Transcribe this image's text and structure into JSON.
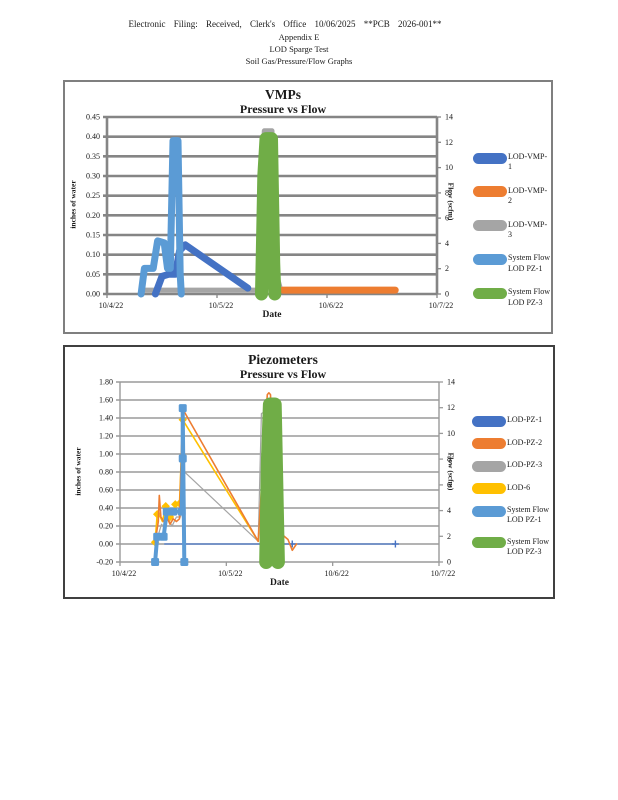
{
  "header": {
    "line1": "Electronic Filing: Received, Clerk's Office 10/06/2025 **PCB 2026-001**",
    "line2": "Appendix E",
    "line3": "LOD Sparge Test",
    "line4": "Soil Gas/Pressure/Flow Graphs"
  },
  "chart_data": [
    {
      "type": "line",
      "title": "VMPs",
      "subtitle": "Pressure vs Flow",
      "xlabel": "Date",
      "ylabel_left": "inches of water",
      "ylabel_right": "Flow (scfm)",
      "x_range": [
        0,
        3
      ],
      "x_ticks": [
        {
          "label": "10/4/22",
          "x": 0
        },
        {
          "label": "10/5/22",
          "x": 1
        },
        {
          "label": "10/6/22",
          "x": 2
        },
        {
          "label": "10/7/22",
          "x": 3
        }
      ],
      "ylim_left": [
        0,
        0.45
      ],
      "yticks_left": {
        "values": [
          0.0,
          0.05,
          0.1,
          0.15,
          0.2,
          0.25,
          0.3,
          0.35,
          0.4,
          0.45
        ],
        "labels": [
          "0.00",
          "0.05",
          "0.10",
          "0.15",
          "0.20",
          "0.25",
          "0.30",
          "0.35",
          "0.40",
          "0.45"
        ]
      },
      "ylim_right": [
        0,
        14
      ],
      "yticks_right": [
        "0",
        "2",
        "4",
        "6",
        "8",
        "10",
        "12",
        "14"
      ],
      "grid_color": "#858585",
      "grid_width": 2.6,
      "legend_position": "right",
      "series": [
        {
          "name": "LOD-VMP-3",
          "color": "#A5A5A5",
          "width": 5,
          "points": [
            [
              0.32,
              0.01
            ],
            [
              1.38,
              0.01
            ],
            [
              1.41,
              0.3
            ],
            [
              1.43,
              0.415
            ],
            [
              1.5,
              0.415
            ],
            [
              1.54,
              0.05
            ],
            [
              1.58,
              0.01
            ],
            [
              1.62,
              0.01
            ]
          ]
        },
        {
          "name": "LOD-VMP-1",
          "color": "#4472C4",
          "width": 7,
          "points": [
            [
              0.44,
              0.0
            ],
            [
              0.5,
              0.045
            ],
            [
              0.56,
              0.05
            ],
            [
              0.62,
              0.05
            ],
            [
              0.66,
              0.11
            ],
            [
              0.71,
              0.125
            ],
            [
              1.28,
              0.015
            ]
          ]
        },
        {
          "name": "LOD-VMP-2",
          "color": "#ED7D31",
          "width": 7,
          "points": [
            [
              1.6,
              0.01
            ],
            [
              2.62,
              0.01
            ]
          ]
        },
        {
          "name": "System Flow LOD PZ-1",
          "color": "#5B9BD5",
          "width": 7,
          "points": [
            [
              0.31,
              0.0
            ],
            [
              0.34,
              0.065
            ],
            [
              0.42,
              0.065
            ],
            [
              0.46,
              0.135
            ],
            [
              0.52,
              0.13
            ],
            [
              0.55,
              0.065
            ],
            [
              0.575,
              0.065
            ],
            [
              0.6,
              0.39
            ],
            [
              0.645,
              0.39
            ],
            [
              0.665,
              0.05
            ],
            [
              0.675,
              0.0
            ]
          ]
        },
        {
          "name": "System Flow LOD PZ-3",
          "color": "#70AD47",
          "width": 13,
          "points": [
            [
              1.405,
              0.0
            ],
            [
              1.425,
              0.3
            ],
            [
              1.445,
              0.395
            ],
            [
              1.495,
              0.395
            ],
            [
              1.515,
              0.08
            ],
            [
              1.525,
              0.0
            ]
          ]
        }
      ],
      "legend": [
        {
          "label": "LOD-VMP-1",
          "color": "#4472C4"
        },
        {
          "label": "LOD-VMP-2",
          "color": "#ED7D31"
        },
        {
          "label": "LOD-VMP-3",
          "color": "#A5A5A5"
        },
        {
          "label": "System Flow\nLOD PZ-1",
          "color": "#5B9BD5"
        },
        {
          "label": "System Flow\nLOD PZ-3",
          "color": "#70AD47"
        }
      ]
    },
    {
      "type": "line",
      "title": "Piezometers",
      "subtitle": "Pressure vs Flow",
      "xlabel": "Date",
      "ylabel_left": "inches of water",
      "ylabel_right": "Flow (scfm)",
      "x_range": [
        0,
        3
      ],
      "x_ticks": [
        {
          "label": "10/4/22",
          "x": 0
        },
        {
          "label": "10/5/22",
          "x": 1
        },
        {
          "label": "10/6/22",
          "x": 2
        },
        {
          "label": "10/7/22",
          "x": 3
        }
      ],
      "ylim_left": [
        -0.2,
        1.8
      ],
      "yticks_left": {
        "values": [
          -0.2,
          0.0,
          0.2,
          0.4,
          0.6,
          0.8,
          1.0,
          1.2,
          1.4,
          1.6,
          1.8
        ],
        "labels": [
          "-0.20",
          "0.00",
          "0.20",
          "0.40",
          "0.60",
          "0.80",
          "1.00",
          "1.20",
          "1.40",
          "1.60",
          "1.80"
        ]
      },
      "ylim_right": [
        0,
        14
      ],
      "yticks_right": [
        "0",
        "2",
        "4",
        "6",
        "8",
        "10",
        "12",
        "14"
      ],
      "grid_color": "#9a9a9a",
      "grid_width": 1.4,
      "legend_position": "right",
      "series": [
        {
          "name": "LOD-PZ-1",
          "color": "#4472C4",
          "width": 1.3,
          "points": [
            [
              0.42,
              0.0
            ],
            [
              2.59,
              0.0
            ]
          ],
          "marker": {
            "shape": "plus",
            "size": 7,
            "points": [
              [
                1.62,
                0.0
              ],
              [
                2.59,
                0.0
              ]
            ]
          }
        },
        {
          "name": "LOD-PZ-3",
          "color": "#A5A5A5",
          "width": 1.2,
          "points": [
            [
              0.36,
              0.1
            ],
            [
              0.39,
              0.22
            ],
            [
              0.42,
              0.18
            ],
            [
              0.45,
              0.28
            ],
            [
              0.49,
              0.2
            ],
            [
              0.53,
              0.3
            ],
            [
              0.57,
              0.3
            ],
            [
              0.59,
              0.82
            ],
            [
              1.3,
              0.03
            ],
            [
              1.33,
              1.45
            ],
            [
              1.41,
              1.5
            ],
            [
              1.46,
              0.0
            ]
          ]
        },
        {
          "name": "LOD-6",
          "color": "#FFC000",
          "width": 1.6,
          "points": [
            [
              0.33,
              0.02
            ],
            [
              0.35,
              0.33
            ],
            [
              0.38,
              0.3
            ],
            [
              0.4,
              0.25
            ],
            [
              0.43,
              0.42
            ],
            [
              0.46,
              0.3
            ],
            [
              0.49,
              0.3
            ],
            [
              0.52,
              0.44
            ],
            [
              0.56,
              0.45
            ],
            [
              0.59,
              1.38
            ],
            [
              1.3,
              0.03
            ]
          ],
          "marker": {
            "shape": "diamond",
            "size": 6,
            "points": [
              [
                0.33,
                0.02
              ],
              [
                0.35,
                0.33
              ],
              [
                0.43,
                0.42
              ],
              [
                0.47,
                0.3
              ],
              [
                0.52,
                0.44
              ],
              [
                0.56,
                0.45
              ],
              [
                0.59,
                1.38
              ]
            ]
          }
        },
        {
          "name": "LOD-PZ-2",
          "color": "#ED7D31",
          "width": 1.6,
          "points": [
            [
              0.33,
              0.02
            ],
            [
              0.36,
              0.25
            ],
            [
              0.37,
              0.54
            ],
            [
              0.385,
              0.3
            ],
            [
              0.41,
              0.25
            ],
            [
              0.44,
              0.3
            ],
            [
              0.47,
              0.22
            ],
            [
              0.5,
              0.28
            ],
            [
              0.53,
              0.25
            ],
            [
              0.56,
              0.28
            ],
            [
              0.59,
              1.5
            ],
            [
              1.3,
              0.03
            ],
            [
              1.385,
              1.66
            ],
            [
              1.4,
              1.68
            ],
            [
              1.415,
              1.66
            ],
            [
              1.46,
              0.05
            ],
            [
              1.49,
              -0.05
            ],
            [
              1.53,
              0.1
            ],
            [
              1.58,
              0.05
            ],
            [
              1.62,
              -0.07
            ],
            [
              1.66,
              0.0
            ]
          ]
        },
        {
          "name": "System Flow LOD PZ-1",
          "color": "#5B9BD5",
          "width": 4,
          "points": [
            [
              0.33,
              -0.2
            ],
            [
              0.35,
              0.08
            ],
            [
              0.41,
              0.08
            ],
            [
              0.44,
              0.36
            ],
            [
              0.58,
              0.36
            ],
            [
              0.59,
              0.95
            ],
            [
              0.59,
              1.51
            ],
            [
              0.605,
              -0.2
            ]
          ],
          "marker": {
            "shape": "square",
            "size": 8,
            "points": [
              [
                0.33,
                -0.2
              ],
              [
                0.35,
                0.08
              ],
              [
                0.41,
                0.08
              ],
              [
                0.44,
                0.36
              ],
              [
                0.5,
                0.36
              ],
              [
                0.58,
                0.36
              ],
              [
                0.59,
                0.95
              ],
              [
                0.59,
                1.51
              ],
              [
                0.605,
                -0.2
              ]
            ]
          }
        },
        {
          "name": "System Flow LOD PZ-3",
          "color": "#70AD47",
          "width": 14,
          "points": [
            [
              1.375,
              -0.2
            ],
            [
              1.39,
              0.9
            ],
            [
              1.41,
              1.55
            ],
            [
              1.455,
              1.55
            ],
            [
              1.475,
              0.4
            ],
            [
              1.485,
              -0.2
            ]
          ]
        }
      ],
      "legend": [
        {
          "label": "LOD-PZ-1",
          "color": "#4472C4"
        },
        {
          "label": "LOD-PZ-2",
          "color": "#ED7D31"
        },
        {
          "label": "LOD-PZ-3",
          "color": "#A5A5A5"
        },
        {
          "label": "LOD-6",
          "color": "#FFC000"
        },
        {
          "label": "System Flow\nLOD PZ-1",
          "color": "#5B9BD5"
        },
        {
          "label": "System Flow\nLOD PZ-3",
          "color": "#70AD47"
        }
      ]
    }
  ]
}
